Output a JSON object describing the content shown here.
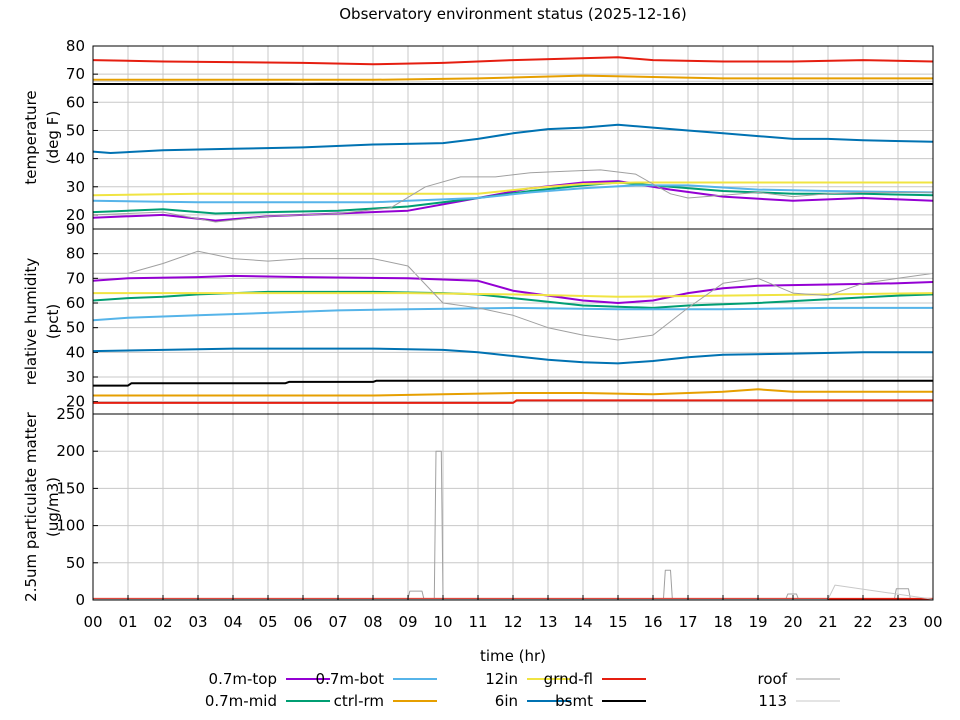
{
  "chart_data": {
    "type": "line",
    "title": "Observatory environment status (2025-12-16)",
    "xlabel": "time (hr)",
    "x_tick_labels": [
      "00",
      "01",
      "02",
      "03",
      "04",
      "05",
      "06",
      "07",
      "08",
      "09",
      "10",
      "11",
      "12",
      "13",
      "14",
      "15",
      "16",
      "17",
      "18",
      "19",
      "20",
      "21",
      "22",
      "23",
      "00"
    ],
    "xlim": [
      0,
      24
    ],
    "grid": true,
    "legend_position": "bottom",
    "series_styles": [
      {
        "name": "0.7m-top",
        "color": "#9400d3"
      },
      {
        "name": "0.7m-mid",
        "color": "#009e73"
      },
      {
        "name": "0.7m-bot",
        "color": "#56b4e9"
      },
      {
        "name": "ctrl-rm",
        "color": "#e69f00"
      },
      {
        "name": "12in",
        "color": "#f0e442"
      },
      {
        "name": "6in",
        "color": "#0072b2"
      },
      {
        "name": "grnd-fl",
        "color": "#e51e10"
      },
      {
        "name": "bsmt",
        "color": "#000000"
      },
      {
        "name": "roof",
        "color": "#a0a0a0"
      },
      {
        "name": "113",
        "color": "#c8c8c8"
      }
    ],
    "panels": [
      {
        "ylabel": [
          "temperature",
          "(deg F)"
        ],
        "ylim": [
          15,
          80
        ],
        "y_ticks": [
          20,
          30,
          40,
          50,
          60,
          70,
          80
        ],
        "y_tick_labels": [
          "20",
          "30",
          "40",
          "50",
          "60",
          "70",
          "80"
        ],
        "series": [
          {
            "name": "0.7m-top",
            "x": [
              0,
              2,
              3.5,
              5,
              7,
              9,
              11,
              12.5,
              14,
              15,
              16.5,
              18,
              20,
              22,
              24
            ],
            "y": [
              19,
              20,
              18,
              19.5,
              20.5,
              21.5,
              26,
              29.5,
              31.5,
              32,
              29,
              26.5,
              25,
              26,
              25
            ]
          },
          {
            "name": "0.7m-mid",
            "x": [
              0,
              2,
              3.5,
              5,
              7,
              9,
              11,
              12.5,
              14,
              15,
              16.5,
              18,
              20,
              22,
              24
            ],
            "y": [
              21,
              22,
              20.5,
              21,
              21.5,
              23,
              26,
              28.5,
              30.5,
              31.5,
              30,
              28.5,
              27.5,
              27.5,
              27
            ]
          },
          {
            "name": "0.7m-bot",
            "x": [
              0,
              3,
              6,
              8,
              9,
              10,
              11,
              12.5,
              14,
              15.5,
              17,
              19,
              21,
              24
            ],
            "y": [
              25,
              24.5,
              24.5,
              24.5,
              25,
              25.5,
              26,
              28,
              29.5,
              30.5,
              30.5,
              29,
              28.5,
              28
            ]
          },
          {
            "name": "ctrl-rm",
            "x": [
              0,
              4,
              8,
              11,
              12.5,
              14,
              16,
              18,
              20,
              24
            ],
            "y": [
              68,
              68,
              68,
              68.5,
              69,
              69.5,
              69,
              68.5,
              68.5,
              68.5
            ]
          },
          {
            "name": "12in",
            "x": [
              0,
              3,
              6,
              9,
              11,
              12.5,
              14,
              15.5,
              17,
              19,
              22,
              24
            ],
            "y": [
              27,
              27.5,
              27.5,
              27.5,
              27.5,
              29.5,
              31,
              31.5,
              31.5,
              31.5,
              31.5,
              31.5
            ]
          },
          {
            "name": "6in",
            "x": [
              0,
              0.5,
              2,
              4,
              6,
              8,
              10,
              11,
              12,
              13,
              14,
              15,
              16,
              17,
              18,
              19,
              20,
              21,
              22,
              24
            ],
            "y": [
              42.5,
              42,
              43,
              43.5,
              44,
              45,
              45.5,
              47,
              49,
              50.5,
              51,
              52,
              51,
              50,
              49,
              48,
              47,
              47,
              46.5,
              46
            ]
          },
          {
            "name": "grnd-fl",
            "x": [
              0,
              2,
              6,
              8,
              10,
              12,
              15,
              16,
              18,
              20,
              22,
              24
            ],
            "y": [
              75,
              74.5,
              74,
              73.5,
              74,
              75,
              76,
              75,
              74.5,
              74.5,
              75,
              74.5
            ]
          },
          {
            "name": "bsmt",
            "x": [
              0,
              24
            ],
            "y": [
              66.5,
              66.5
            ]
          },
          {
            "name": "roof",
            "x": [
              0,
              2,
              3.5,
              5,
              7,
              8.5,
              9.5,
              10.5,
              11.5,
              12.5,
              13.5,
              14.5,
              15.5,
              16,
              16.5,
              17,
              18,
              19,
              20,
              21,
              22,
              24
            ],
            "y": [
              20,
              21,
              17.5,
              19.5,
              20.5,
              22.5,
              30,
              33.5,
              33.5,
              35,
              35.5,
              36,
              34.5,
              31,
              27.5,
              26,
              27,
              28,
              26.5,
              27.5,
              28,
              28
            ]
          },
          {
            "name": "113",
            "x": [
              0,
              6,
              12,
              18,
              24
            ],
            "y": [
              67.5,
              67,
              67.5,
              67.5,
              67.5
            ]
          }
        ]
      },
      {
        "ylabel": [
          "relative humidity",
          "(pct)"
        ],
        "ylim": [
          15,
          90
        ],
        "y_ticks": [
          20,
          30,
          40,
          50,
          60,
          70,
          80,
          90
        ],
        "y_tick_labels": [
          "20",
          "30",
          "40",
          "50",
          "60",
          "70",
          "80",
          "90"
        ],
        "series": [
          {
            "name": "0.7m-top",
            "x": [
              0,
              1,
              3,
              4,
              6,
              9,
              11,
              12,
              13,
              14,
              15,
              16,
              17,
              18,
              19,
              21,
              23,
              24
            ],
            "y": [
              69,
              70,
              70.5,
              71,
              70.5,
              70,
              69,
              65,
              63,
              61,
              60,
              61,
              64,
              66,
              67,
              67.5,
              68,
              68.5
            ]
          },
          {
            "name": "0.7m-mid",
            "x": [
              0,
              1,
              2,
              3,
              5,
              8,
              10,
              11,
              12,
              13,
              14,
              15,
              16,
              17,
              19,
              21,
              23,
              24
            ],
            "y": [
              61,
              62,
              62.5,
              63.5,
              64.5,
              64.5,
              64,
              63.5,
              62,
              60.5,
              59,
              58.5,
              58,
              59,
              60,
              61.5,
              63,
              63.5
            ]
          },
          {
            "name": "0.7m-bot",
            "x": [
              0,
              1,
              3,
              5,
              7,
              9,
              12,
              15,
              18,
              21,
              24
            ],
            "y": [
              53,
              54,
              55,
              56,
              57,
              57.5,
              58,
              57.5,
              57.5,
              58,
              58
            ]
          },
          {
            "name": "ctrl-rm",
            "x": [
              0,
              4,
              8,
              10,
              12,
              14,
              16,
              18,
              19,
              20,
              24
            ],
            "y": [
              22.5,
              22.5,
              22.5,
              23,
              23.5,
              23.5,
              23,
              24,
              25,
              24,
              24
            ]
          },
          {
            "name": "12in",
            "x": [
              0,
              3,
              6,
              9,
              12,
              15,
              18,
              21,
              24
            ],
            "y": [
              64,
              64,
              64,
              64,
              63.5,
              62.5,
              63,
              63.5,
              64
            ]
          },
          {
            "name": "6in",
            "x": [
              0,
              2,
              4,
              6,
              8,
              10,
              11,
              12,
              13,
              14,
              15,
              16,
              17,
              18,
              20,
              22,
              24
            ],
            "y": [
              40.5,
              41,
              41.5,
              41.5,
              41.5,
              41,
              40,
              38.5,
              37,
              36,
              35.5,
              36.5,
              38,
              39,
              39.5,
              40,
              40
            ]
          },
          {
            "name": "grnd-fl",
            "x": [
              0,
              4,
              8,
              12,
              12.1,
              16,
              20,
              24
            ],
            "y": [
              19.5,
              19.5,
              19.5,
              19.5,
              20.5,
              20.5,
              20.5,
              20.5
            ]
          },
          {
            "name": "bsmt",
            "x": [
              0,
              1,
              1.1,
              5.5,
              5.6,
              8,
              8.1,
              24
            ],
            "y": [
              26.5,
              26.5,
              27.5,
              27.5,
              28,
              28,
              28.5,
              28.5
            ]
          },
          {
            "name": "roof",
            "x": [
              0,
              1,
              2,
              3,
              4,
              5,
              6,
              7,
              8,
              9,
              10,
              11,
              12,
              13,
              14,
              15,
              16,
              17,
              18,
              19,
              20,
              21,
              22,
              23,
              24
            ],
            "y": [
              72,
              72,
              76,
              81,
              78,
              77,
              78,
              78,
              78,
              75,
              60,
              58,
              55,
              50,
              47,
              45,
              47,
              58,
              68,
              70,
              64,
              63,
              68,
              70,
              72
            ]
          },
          {
            "name": "113",
            "x": [
              0,
              6,
              12,
              18,
              24
            ],
            "y": [
              72,
              72,
              72,
              72,
              72
            ]
          }
        ]
      },
      {
        "ylabel": [
          "2.5um particulate matter",
          "(ug/m3)"
        ],
        "ylim": [
          0,
          250
        ],
        "y_ticks": [
          0,
          50,
          100,
          150,
          200,
          250
        ],
        "y_tick_labels": [
          "0",
          "50",
          "100",
          "150",
          "200",
          "250"
        ],
        "series": [
          {
            "name": "roof",
            "x": [
              0,
              9,
              9.05,
              9.4,
              9.45,
              9.75,
              9.8,
              9.95,
              10,
              16.3,
              16.35,
              16.5,
              16.55,
              19.8,
              19.85,
              20.1,
              20.15,
              22.9,
              22.95,
              23.3,
              23.35,
              24
            ],
            "y": [
              2,
              2,
              12,
              12,
              2,
              2,
              200,
              200,
              2,
              2,
              40,
              40,
              2,
              2,
              8,
              8,
              2,
              2,
              15,
              15,
              2,
              2
            ]
          },
          {
            "name": "grnd-fl",
            "x": [
              0,
              24
            ],
            "y": [
              1.5,
              1.5
            ]
          },
          {
            "name": "113",
            "x": [
              0,
              21,
              21.2,
              24
            ],
            "y": [
              1,
              1,
              20,
              1
            ]
          }
        ]
      }
    ]
  }
}
